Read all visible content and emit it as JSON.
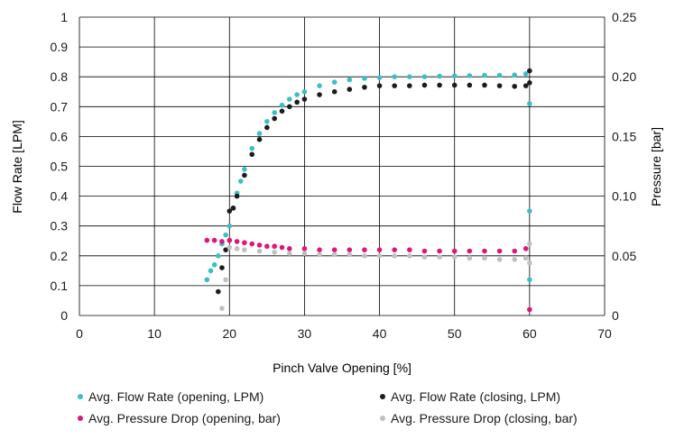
{
  "chart_data": {
    "type": "scatter",
    "xlabel": "Pinch Valve Opening [%]",
    "ylabel": "Flow Rate [LPM]",
    "y2label": "Pressure [bar]",
    "xlim": [
      0,
      70
    ],
    "ylim": [
      0,
      1
    ],
    "y2lim": [
      0,
      0.25
    ],
    "x_ticks": [
      "0",
      "10",
      "20",
      "30",
      "40",
      "50",
      "60",
      "70"
    ],
    "y_ticks": [
      "0",
      "0.1",
      "0.2",
      "0.3",
      "0.4",
      "0.5",
      "0.6",
      "0.7",
      "0.8",
      "0.9",
      "1"
    ],
    "y2_ticks": [
      "0",
      "0.05",
      "0.10",
      "0.15",
      "0.20",
      "0.25"
    ],
    "grid": true,
    "legend_position": "bottom",
    "series": [
      {
        "name": "Avg. Flow Rate (opening, LPM)",
        "color": "#3bbfc6",
        "axis": "left",
        "x": [
          17,
          17.5,
          18,
          18.5,
          19,
          19.5,
          20,
          20.5,
          21,
          21.5,
          22,
          23,
          24,
          25,
          26,
          27,
          28,
          29,
          30,
          32,
          34,
          36,
          38,
          40,
          42,
          44,
          46,
          48,
          50,
          52,
          54,
          56,
          58,
          59.5,
          60,
          60,
          60
        ],
        "y": [
          0.12,
          0.15,
          0.17,
          0.2,
          0.24,
          0.27,
          0.3,
          0.36,
          0.41,
          0.45,
          0.49,
          0.56,
          0.61,
          0.65,
          0.68,
          0.705,
          0.725,
          0.74,
          0.75,
          0.77,
          0.782,
          0.79,
          0.795,
          0.797,
          0.8,
          0.8,
          0.8,
          0.802,
          0.803,
          0.804,
          0.805,
          0.805,
          0.806,
          0.81,
          0.71,
          0.35,
          0.12
        ]
      },
      {
        "name": "Avg. Flow Rate (closing, LPM)",
        "color": "#1c1c1c",
        "axis": "left",
        "x": [
          60,
          60,
          59.5,
          58,
          56,
          54,
          52,
          50,
          48,
          46,
          44,
          42,
          40,
          38,
          36,
          34,
          32,
          30,
          29,
          28,
          27,
          26,
          25,
          24,
          23,
          22,
          21,
          20.5,
          20,
          19.5,
          19,
          18.5
        ],
        "y": [
          0.82,
          0.78,
          0.77,
          0.768,
          0.77,
          0.772,
          0.772,
          0.772,
          0.772,
          0.772,
          0.77,
          0.77,
          0.77,
          0.765,
          0.758,
          0.75,
          0.74,
          0.725,
          0.715,
          0.7,
          0.685,
          0.66,
          0.63,
          0.59,
          0.54,
          0.47,
          0.4,
          0.36,
          0.35,
          0.22,
          0.16,
          0.08
        ]
      },
      {
        "name": "Avg. Pressure Drop (opening, bar)",
        "color": "#e0147c",
        "axis": "right",
        "x": [
          17,
          18,
          19,
          20,
          21,
          22,
          23,
          24,
          25,
          26,
          27,
          28,
          30,
          32,
          34,
          36,
          38,
          40,
          42,
          44,
          46,
          48,
          50,
          52,
          54,
          56,
          58,
          59.5,
          60
        ],
        "y": [
          0.063,
          0.063,
          0.062,
          0.063,
          0.062,
          0.061,
          0.06,
          0.059,
          0.058,
          0.058,
          0.057,
          0.056,
          0.056,
          0.055,
          0.055,
          0.055,
          0.055,
          0.055,
          0.055,
          0.055,
          0.054,
          0.054,
          0.054,
          0.054,
          0.054,
          0.054,
          0.054,
          0.056,
          0.005
        ]
      },
      {
        "name": "Avg. Pressure Drop (closing, bar)",
        "color": "#c0c0c0",
        "axis": "right",
        "x": [
          60,
          60,
          59.5,
          58,
          56,
          54,
          52,
          50,
          48,
          46,
          44,
          42,
          40,
          38,
          36,
          34,
          32,
          30,
          28,
          26,
          24,
          22,
          21,
          20,
          19.5,
          19
        ],
        "y": [
          0.044,
          0.06,
          0.048,
          0.047,
          0.047,
          0.048,
          0.048,
          0.049,
          0.049,
          0.049,
          0.05,
          0.05,
          0.05,
          0.05,
          0.051,
          0.051,
          0.051,
          0.052,
          0.052,
          0.053,
          0.054,
          0.055,
          0.056,
          0.057,
          0.03,
          0.006
        ]
      }
    ]
  }
}
